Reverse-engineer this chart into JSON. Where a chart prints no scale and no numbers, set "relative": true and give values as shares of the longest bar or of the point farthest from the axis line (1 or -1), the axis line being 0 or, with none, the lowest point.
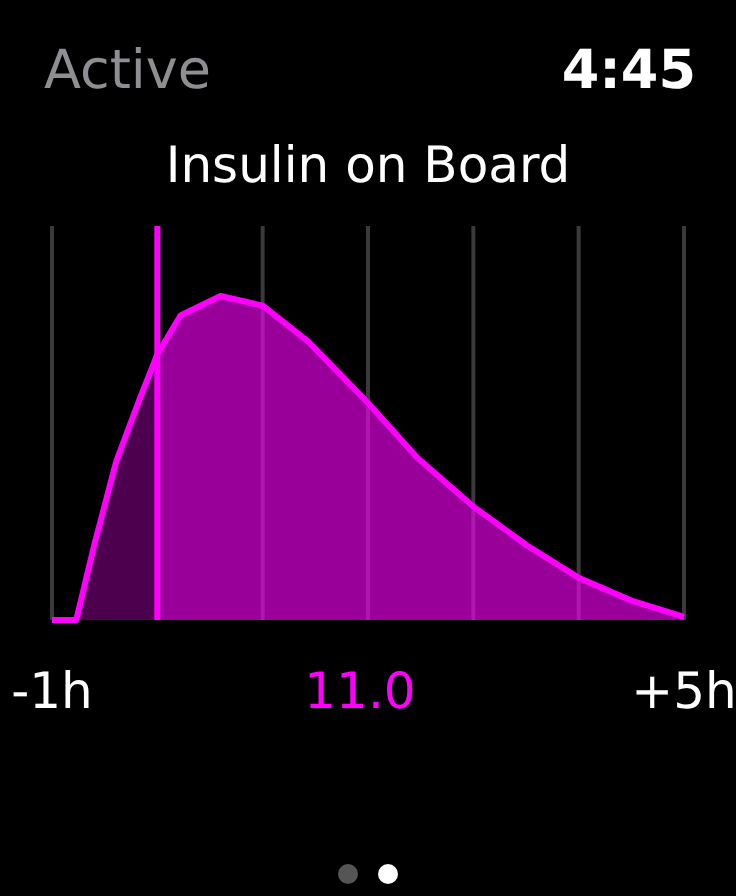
{
  "chart_data": {
    "type": "area",
    "title": "Insulin on Board",
    "relative": true,
    "x": [
      -1,
      -0.77,
      -0.6,
      -0.39,
      -0.17,
      0,
      0.22,
      0.6,
      1,
      1.43,
      2,
      2.47,
      3,
      3.51,
      4,
      4.5,
      5
    ],
    "series": [
      {
        "color": "#ff00ff",
        "values": [
          0,
          0,
          0.23,
          0.49,
          0.68,
          0.82,
          0.94,
          1,
          0.97,
          0.86,
          0.67,
          0.5,
          0.35,
          0.23,
          0.13,
          0.06,
          0.01
        ]
      }
    ],
    "xlim": [
      -1,
      5
    ],
    "xticks": [
      {
        "value": -1,
        "label": "-1h"
      },
      {
        "value": 0,
        "label": null
      },
      {
        "value": 1,
        "label": null
      },
      {
        "value": 2,
        "label": null
      },
      {
        "value": 3,
        "label": null
      },
      {
        "value": 4,
        "label": null
      },
      {
        "value": 5,
        "label": "+5h"
      }
    ],
    "grid": "x",
    "ref_lines": [
      {
        "axis": "x",
        "value": 0,
        "color": "#ff00ff"
      }
    ],
    "annotations": [
      "Active",
      "4:45",
      "11.0"
    ]
  }
}
